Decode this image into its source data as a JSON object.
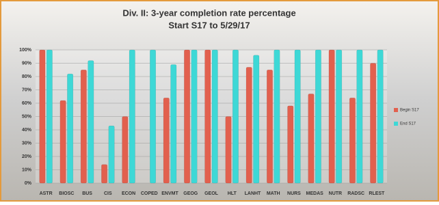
{
  "chart_data": {
    "type": "bar",
    "title": "Div. II: 3-year completion rate percentage",
    "subtitle": "Start S17 to 5/29/17",
    "categories": [
      "ASTR",
      "BIOSC",
      "BUS",
      "CIS",
      "ECON",
      "COPED",
      "ENVMT",
      "GEOG",
      "GEOL",
      "HLT",
      "LANHT",
      "MATH",
      "NURS",
      "MEDAS",
      "NUTR",
      "RADSC",
      "RLEST"
    ],
    "series": [
      {
        "name": "Begin S17",
        "color": "#e2604e",
        "values": [
          100,
          62,
          85,
          14,
          50,
          0,
          64,
          100,
          100,
          50,
          87,
          85,
          58,
          67,
          100,
          64,
          90
        ]
      },
      {
        "name": "End S17",
        "color": "#3ed8d6",
        "values": [
          100,
          82,
          92,
          43,
          100,
          100,
          89,
          100,
          100,
          100,
          96,
          100,
          100,
          100,
          100,
          100,
          100
        ]
      }
    ],
    "ylim": [
      0,
      100
    ],
    "yticks": [
      {
        "value": 0,
        "label": "0%"
      },
      {
        "value": 10,
        "label": "10%"
      },
      {
        "value": 20,
        "label": "20%"
      },
      {
        "value": 30,
        "label": "30%"
      },
      {
        "value": 40,
        "label": "40%"
      },
      {
        "value": 50,
        "label": "50%"
      },
      {
        "value": 60,
        "label": "60%"
      },
      {
        "value": 70,
        "label": "70%"
      },
      {
        "value": 80,
        "label": "80%"
      },
      {
        "value": 90,
        "label": "90%"
      },
      {
        "value": 100,
        "label": "100%"
      }
    ],
    "grid": true,
    "legend": "right"
  }
}
